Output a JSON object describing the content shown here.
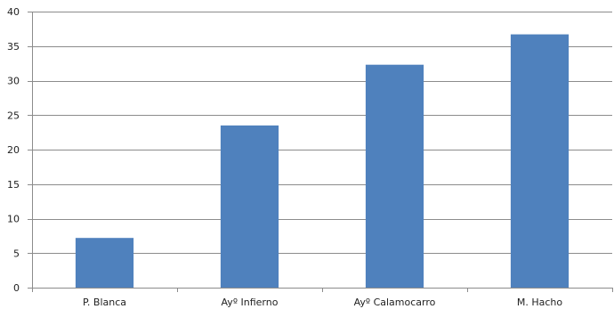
{
  "chart_data": {
    "type": "bar",
    "categories": [
      "P. Blanca",
      "Ayº Infierno",
      "Ayº Calamocarro",
      "M. Hacho"
    ],
    "values": [
      7.2,
      23.5,
      32.3,
      36.7
    ],
    "ylim": [
      0,
      40
    ],
    "yticks": [
      "0",
      "5",
      "10",
      "15",
      "20",
      "25",
      "30",
      "35",
      "40"
    ],
    "title": "",
    "xlabel": "",
    "ylabel": "",
    "grid": true,
    "legend": "none",
    "bar_color": "#4f81bd"
  }
}
